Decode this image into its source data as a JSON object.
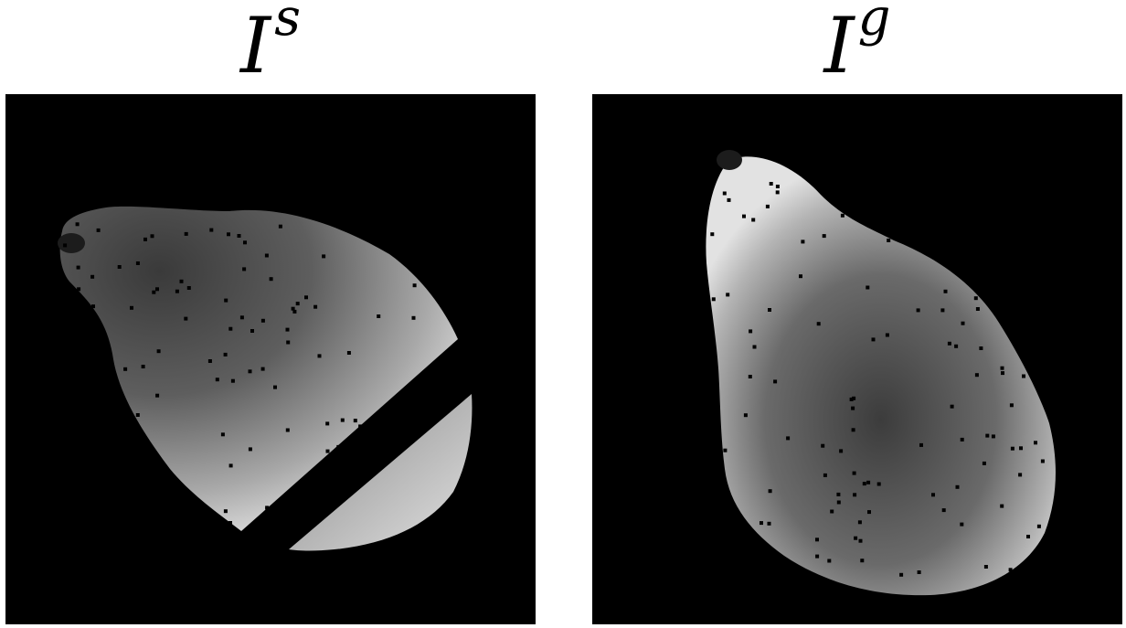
{
  "panels": [
    {
      "title_base": "I",
      "title_sup": "s",
      "image": "pear-depth-map-source-sliced"
    },
    {
      "title_base": "I",
      "title_sup": "g",
      "image": "pear-depth-map-goal"
    }
  ],
  "colors": {
    "background": "#000000",
    "page": "#ffffff",
    "shape_dark": "#3a3a3a",
    "shape_light": "#d8d8d8"
  }
}
